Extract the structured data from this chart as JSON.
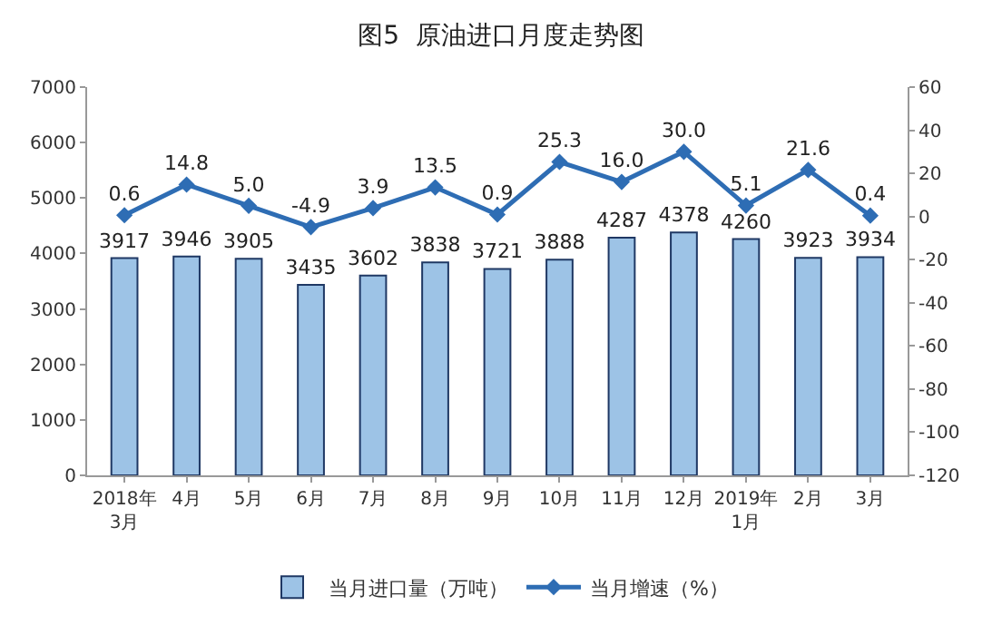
{
  "chart_data": {
    "type": "bar",
    "title": "图5  原油进口月度走势图",
    "categories": [
      "2018年\n3月",
      "4月",
      "5月",
      "6月",
      "7月",
      "8月",
      "9月",
      "10月",
      "11月",
      "12月",
      "2019年\n1月",
      "2月",
      "3月"
    ],
    "series": [
      {
        "name": "当月进口量（万吨）",
        "color": "#9dc3e6",
        "values": [
          3917,
          3946,
          3905,
          3435,
          3602,
          3838,
          3721,
          3888,
          4287,
          4378,
          4260,
          3923,
          3934
        ]
      },
      {
        "name": "当月增速（%）",
        "type": "line",
        "axis": "y2",
        "color": "#2e6db4",
        "marker": "diamond",
        "values": [
          0.6,
          14.8,
          5.0,
          -4.9,
          3.9,
          13.5,
          0.9,
          25.3,
          16.0,
          30.0,
          5.1,
          21.6,
          0.4
        ],
        "value_labels": [
          "0.6",
          "14.8",
          "5.0",
          "-4.9",
          "3.9",
          "13.5",
          "0.9",
          "25.3",
          "16.0",
          "30.0",
          "5.1",
          "21.6",
          "0.4"
        ]
      }
    ],
    "ylim": [
      0,
      7000
    ],
    "yticks": [
      0,
      1000,
      2000,
      3000,
      4000,
      5000,
      6000,
      7000
    ],
    "y2lim": [
      -120,
      60
    ],
    "y2ticks": [
      -120,
      -100,
      -80,
      -60,
      -40,
      -20,
      0,
      20,
      40,
      60
    ],
    "data_labels": true,
    "grid": false,
    "legend": "bottom"
  }
}
